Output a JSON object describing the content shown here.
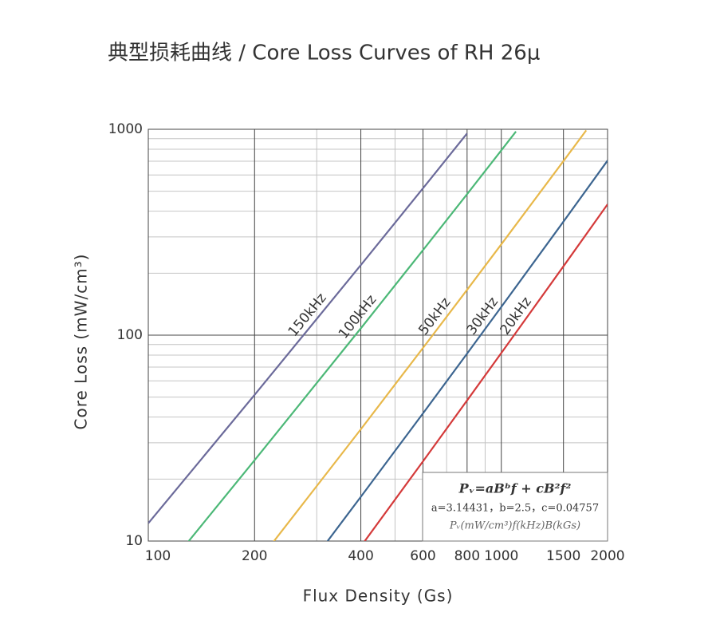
{
  "chart_data": {
    "type": "line",
    "title": "典型损耗曲线 / Core Loss Curves of RH 26μ",
    "xlabel": "Flux Density (Gs)",
    "ylabel": "Core Loss (mW/cm³)",
    "xscale": "log",
    "yscale": "log",
    "xlim": [
      100,
      2000
    ],
    "ylim": [
      10,
      1000
    ],
    "xticks": [
      100,
      200,
      400,
      600,
      800,
      1000,
      1500,
      2000
    ],
    "xminorticks": [
      300,
      500,
      700,
      900
    ],
    "yticks": [
      10,
      100,
      1000
    ],
    "yminorticks": [
      20,
      30,
      40,
      50,
      60,
      70,
      80,
      90,
      200,
      300,
      400,
      500,
      600,
      700,
      800,
      900
    ],
    "grid": true,
    "series": [
      {
        "name": "150kHz",
        "color": "#6b6a9a",
        "x": [
          100,
          200,
          400,
          600,
          800
        ],
        "values": [
          12.2,
          51.3,
          218.9,
          517,
          955
        ]
      },
      {
        "name": "100kHz",
        "color": "#4cb877",
        "x": [
          130,
          200,
          400,
          600,
          800,
          1000,
          1100
        ],
        "values": [
          9.96,
          24.7,
          107.9,
          259,
          484,
          790,
          975
        ]
      },
      {
        "name": "50kHz",
        "color": "#e8b84a",
        "x": [
          225,
          400,
          600,
          800,
          1000,
          1500,
          1740
        ],
        "values": [
          9.8,
          34.9,
          86.7,
          166,
          276,
          701,
          988
        ]
      },
      {
        "name": "30kHz",
        "color": "#3c6590",
        "x": [
          320,
          400,
          600,
          800,
          1000,
          1500,
          2000
        ],
        "values": [
          9.85,
          16.4,
          41.7,
          81.4,
          137.1,
          356,
          705
        ]
      },
      {
        "name": "20kHz",
        "color": "#d43a3a",
        "x": [
          410,
          600,
          800,
          1000,
          1500,
          2000
        ],
        "values": [
          9.97,
          24.4,
          48.2,
          81.9,
          216,
          432
        ]
      }
    ],
    "annotations": [
      "Pᵥ=aBᵇf + cB²f²",
      "a=3.14431，b=2.5，c=0.04757",
      "Pᵥ(mW/cm³)f(kHz)B(kGs)"
    ]
  }
}
